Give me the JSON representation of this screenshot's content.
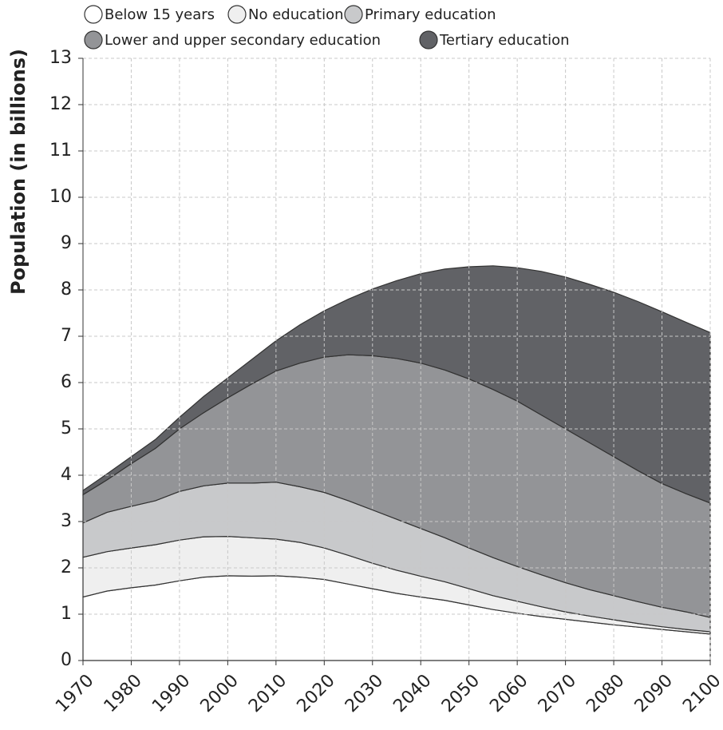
{
  "chart_data": {
    "type": "stacked_area",
    "y_label": "Population (in billions)",
    "x": [
      1970,
      1975,
      1980,
      1985,
      1990,
      1995,
      2000,
      2005,
      2010,
      2015,
      2020,
      2025,
      2030,
      2035,
      2040,
      2045,
      2050,
      2055,
      2060,
      2065,
      2070,
      2075,
      2080,
      2085,
      2090,
      2095,
      2100
    ],
    "series": [
      {
        "name": "Below 15 years",
        "color": "#ffffff",
        "values": [
          1.37,
          1.5,
          1.57,
          1.63,
          1.72,
          1.8,
          1.83,
          1.82,
          1.83,
          1.8,
          1.75,
          1.65,
          1.55,
          1.45,
          1.37,
          1.3,
          1.2,
          1.1,
          1.02,
          0.95,
          0.89,
          0.83,
          0.77,
          0.72,
          0.67,
          0.62,
          0.57
        ]
      },
      {
        "name": "No education",
        "color": "#efefef",
        "values": [
          0.86,
          0.85,
          0.86,
          0.87,
          0.88,
          0.87,
          0.85,
          0.83,
          0.79,
          0.75,
          0.68,
          0.62,
          0.55,
          0.5,
          0.45,
          0.4,
          0.35,
          0.3,
          0.26,
          0.21,
          0.16,
          0.13,
          0.11,
          0.08,
          0.06,
          0.05,
          0.05
        ]
      },
      {
        "name": "Primary education",
        "color": "#c8c9cb",
        "values": [
          0.74,
          0.85,
          0.9,
          0.95,
          1.05,
          1.1,
          1.15,
          1.18,
          1.23,
          1.2,
          1.2,
          1.18,
          1.15,
          1.1,
          1.03,
          0.95,
          0.88,
          0.82,
          0.75,
          0.69,
          0.63,
          0.57,
          0.52,
          0.47,
          0.42,
          0.38,
          0.31
        ]
      },
      {
        "name": "Lower and upper secondary education",
        "color": "#939497",
        "values": [
          0.61,
          0.7,
          0.92,
          1.13,
          1.35,
          1.58,
          1.84,
          2.14,
          2.4,
          2.67,
          2.92,
          3.15,
          3.33,
          3.47,
          3.57,
          3.62,
          3.65,
          3.63,
          3.57,
          3.45,
          3.32,
          3.17,
          3.0,
          2.83,
          2.67,
          2.55,
          2.47
        ]
      },
      {
        "name": "Tertiary education",
        "color": "#616266",
        "values": [
          0.09,
          0.13,
          0.15,
          0.19,
          0.25,
          0.35,
          0.43,
          0.53,
          0.65,
          0.83,
          1.0,
          1.2,
          1.44,
          1.68,
          1.93,
          2.18,
          2.42,
          2.67,
          2.88,
          3.1,
          3.28,
          3.42,
          3.55,
          3.65,
          3.71,
          3.7,
          3.68
        ]
      }
    ],
    "xlim": [
      1970,
      2100
    ],
    "xticks": [
      1970,
      1980,
      1990,
      2000,
      2010,
      2020,
      2030,
      2040,
      2050,
      2060,
      2070,
      2080,
      2090,
      2100
    ],
    "ylim": [
      0,
      13
    ],
    "yticks": [
      0,
      1,
      2,
      3,
      4,
      5,
      6,
      7,
      8,
      9,
      10,
      11,
      12,
      13
    ],
    "grid": true,
    "legend": "top"
  }
}
